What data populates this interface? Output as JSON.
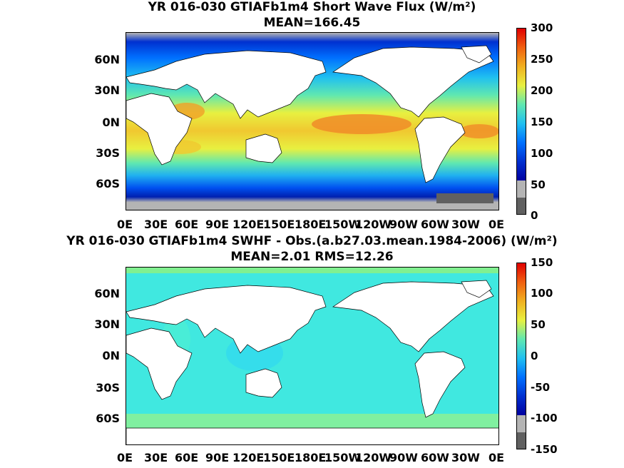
{
  "panels": [
    {
      "title": "YR 016-030 GTIAFb1m4  Short Wave Flux (W/m²)",
      "subtitle": "MEAN=166.45",
      "colorbar_ticks": [
        "300",
        "250",
        "200",
        "150",
        "100",
        "50",
        "0"
      ]
    },
    {
      "title": "YR 016-030 GTIAFb1m4 SWHF - Obs.(a.b27.03.mean.1984-2006) (W/m²)",
      "subtitle": "MEAN=2.01 RMS=12.26",
      "colorbar_ticks": [
        "150",
        "100",
        "50",
        "0",
        "-50",
        "-100",
        "-150"
      ]
    }
  ],
  "lat_labels": [
    "60N",
    "30N",
    "0N",
    "30S",
    "60S"
  ],
  "lon_labels": [
    "0E",
    "30E",
    "60E",
    "90E",
    "120E",
    "150E",
    "180E",
    "150W",
    "120W",
    "90W",
    "60W",
    "30W",
    "0E"
  ],
  "colors": {
    "land": "#ffffff",
    "missing": "#b4b4b4",
    "ice": "#606060"
  }
}
